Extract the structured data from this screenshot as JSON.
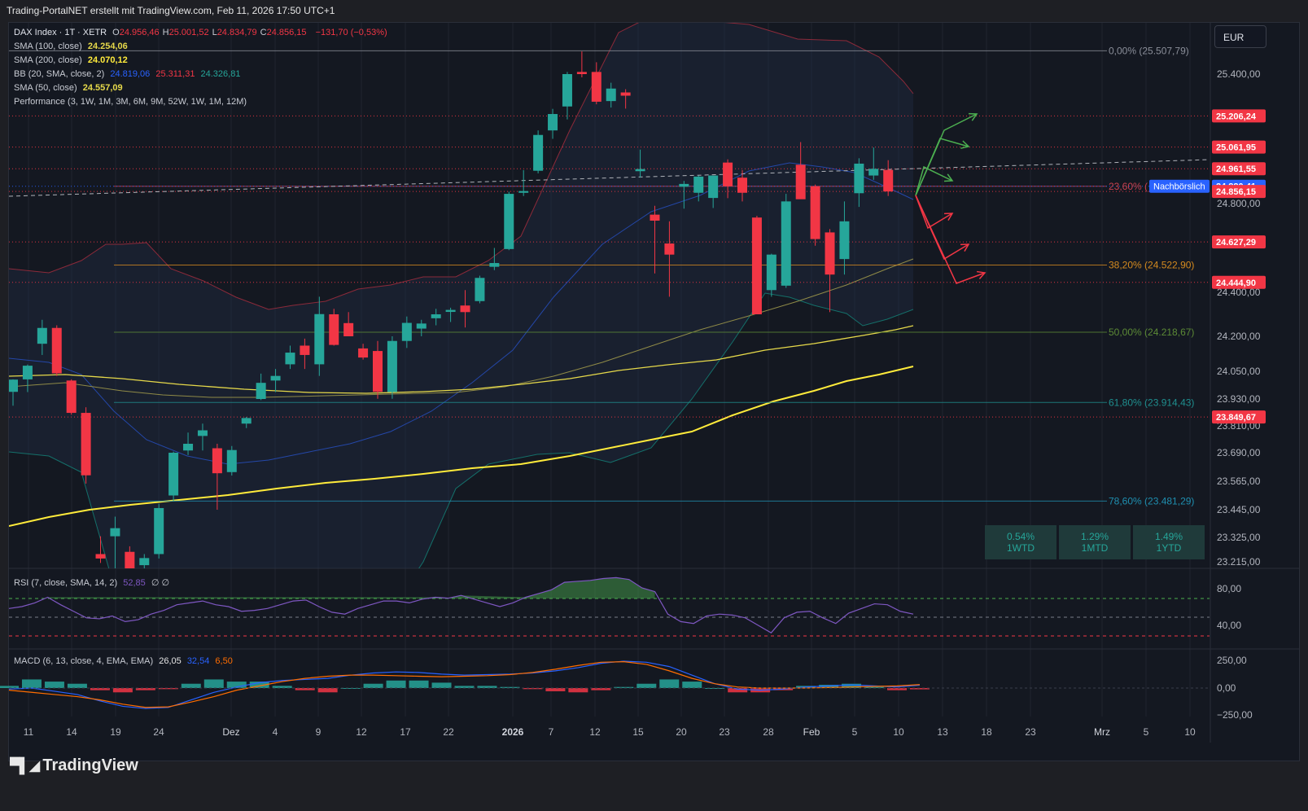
{
  "header": {
    "text": "Trading-PortalNET erstellt mit TradingView.com, Feb 11, 2026 17:50 UTC+1"
  },
  "currency": "EUR",
  "brand": "TradingView",
  "legend": {
    "symbol": "DAX Index · 1T · XETR",
    "ohlc": [
      {
        "k": "O",
        "v": "24.956,46"
      },
      {
        "k": "H",
        "v": "25.001,52"
      },
      {
        "k": "L",
        "v": "24.834,79"
      },
      {
        "k": "C",
        "v": "24.856,15"
      }
    ],
    "change": "−131,70 (−0,53%)",
    "sma100_label": "SMA (100, close)",
    "sma100_value": "24.254,06",
    "sma200_label": "SMA (200, close)",
    "sma200_value": "24.070,12",
    "bb_label": "BB (20, SMA, close, 2)",
    "bb_values": [
      "24.819,06",
      "25.311,31",
      "24.326,81"
    ],
    "sma50_label": "SMA (50, close)",
    "sma50_value": "24.557,09",
    "perf_label": "Performance (3, 1W, 1M, 3M, 6M, 9M, 52W, 1W, 1M, 12M)",
    "rsi_label": "RSI (7, close, SMA, 14, 2)",
    "rsi_value": "52,85",
    "rsi_extra": "∅ ∅",
    "macd_label": "MACD (6, 13, close, 4, EMA, EMA)",
    "macd_values": [
      "26,05",
      "32,54",
      "6,50"
    ]
  },
  "colors": {
    "up": "#26a69a",
    "down": "#f23645",
    "sma100": "#e6d94a",
    "sma200": "#ffeb3b",
    "sma50": "#8f8a47",
    "bb_mid": "#2962ff",
    "bb_up": "#b2344a",
    "bb_low": "#1a9a8a",
    "rsi": "#7e57c2",
    "macd": "#2962ff",
    "signal": "#ff6d00"
  },
  "performance": [
    {
      "value": "0.54%",
      "label": "1WTD"
    },
    {
      "value": "1.29%",
      "label": "1MTD"
    },
    {
      "value": "1.49%",
      "label": "1YTD"
    }
  ],
  "chart_data": {
    "type": "candlestick",
    "title": "DAX Index · 1T · XETR",
    "price_axis_ticks": [
      "25.400,00",
      "24.800,00",
      "24.400,00",
      "24.200,00",
      "24.050,00",
      "23.930,00",
      "23.810,00",
      "23.690,00",
      "23.565,00",
      "23.445,00",
      "23.325,00",
      "23.215,00"
    ],
    "x_axis_labels": [
      "11",
      "14",
      "19",
      "24",
      "Dez",
      "4",
      "9",
      "12",
      "17",
      "22",
      "2026",
      "7",
      "12",
      "15",
      "20",
      "23",
      "28",
      "Feb",
      "5",
      "10",
      "13",
      "18",
      "23",
      "Mrz",
      "5",
      "10"
    ],
    "candles": [
      [
        23961,
        24015,
        23900,
        24014
      ],
      [
        24015,
        24079,
        23960,
        24074
      ],
      [
        24168,
        24275,
        24120,
        24238
      ],
      [
        24238,
        24250,
        24030,
        24041
      ],
      [
        24010,
        24015,
        23860,
        23868
      ],
      [
        23868,
        23893,
        23555,
        23591
      ],
      [
        23250,
        23330,
        23210,
        23230
      ],
      [
        23330,
        23415,
        23150,
        23365
      ],
      [
        23260,
        23285,
        23180,
        23185
      ],
      [
        23200,
        23250,
        23120,
        23232
      ],
      [
        23250,
        23470,
        23230,
        23452
      ],
      [
        23505,
        23695,
        23480,
        23690
      ],
      [
        23700,
        23780,
        23680,
        23730
      ],
      [
        23765,
        23820,
        23700,
        23790
      ],
      [
        23710,
        23730,
        23445,
        23600
      ],
      [
        23605,
        23720,
        23590,
        23702
      ],
      [
        23820,
        23850,
        23800,
        23845
      ],
      [
        23930,
        24040,
        23925,
        24000
      ],
      [
        24010,
        24060,
        23960,
        24030
      ],
      [
        24080,
        24160,
        24060,
        24130
      ],
      [
        24160,
        24190,
        24060,
        24120
      ],
      [
        24080,
        24380,
        24030,
        24301
      ],
      [
        24300,
        24325,
        24160,
        24163
      ],
      [
        24260,
        24310,
        24200,
        24200
      ],
      [
        24148,
        24168,
        24100,
        24109
      ],
      [
        24137,
        24180,
        23931,
        23961
      ],
      [
        23960,
        24200,
        23931,
        24180
      ],
      [
        24180,
        24290,
        24150,
        24261
      ],
      [
        24235,
        24275,
        24200,
        24258
      ],
      [
        24282,
        24325,
        24250,
        24300
      ],
      [
        24311,
        24330,
        24265,
        24320
      ],
      [
        24340,
        24410,
        24240,
        24310
      ],
      [
        24360,
        24475,
        24350,
        24465
      ],
      [
        24515,
        24600,
        24500,
        24532
      ],
      [
        24595,
        24855,
        24590,
        24845
      ],
      [
        24850,
        24955,
        24835,
        24858
      ],
      [
        24952,
        25139,
        24940,
        25118
      ],
      [
        25139,
        25239,
        25100,
        25215
      ],
      [
        25250,
        25410,
        25190,
        25400
      ],
      [
        25410,
        25505,
        25385,
        25400
      ],
      [
        25410,
        25455,
        25260,
        25272
      ],
      [
        25275,
        25360,
        25245,
        25333
      ],
      [
        25315,
        25330,
        25240,
        25300
      ],
      [
        24950,
        25050,
        24920,
        24960
      ],
      [
        24750,
        24790,
        24485,
        24723
      ],
      [
        24620,
        24720,
        24380,
        24570
      ],
      [
        24878,
        24905,
        24777,
        24891
      ],
      [
        24850,
        24930,
        24810,
        24925
      ],
      [
        24826,
        24930,
        24780,
        24930
      ],
      [
        24990,
        25005,
        24825,
        24880
      ],
      [
        24920,
        24955,
        24810,
        24850
      ],
      [
        24737,
        24745,
        24300,
        24300
      ],
      [
        24410,
        24574,
        24380,
        24570
      ],
      [
        24430,
        24845,
        24420,
        24810
      ],
      [
        24980,
        25085,
        24825,
        24820
      ],
      [
        24880,
        24888,
        24610,
        24640
      ],
      [
        24670,
        24685,
        24310,
        24480
      ],
      [
        24550,
        24810,
        24480,
        24720
      ],
      [
        24848,
        25010,
        24785,
        24985
      ],
      [
        24930,
        25060,
        24910,
        24961
      ],
      [
        24956,
        25001,
        24835,
        24856
      ]
    ],
    "levels": [
      {
        "price": 25206.24,
        "label": "25.206,24",
        "color": "#f23645"
      },
      {
        "price": 25061.95,
        "label": "25.061,95",
        "color": "#f23645"
      },
      {
        "price": 24961.55,
        "label": "24.961,55",
        "color": "#f23645"
      },
      {
        "price": 24880.41,
        "label": "24.880,41",
        "color": "#2962ff",
        "tag": "Nachbörslich"
      },
      {
        "price": 24856.15,
        "label": "24.856,15",
        "color": "#f23645"
      },
      {
        "price": 24627.29,
        "label": "24.627,29",
        "color": "#f23645"
      },
      {
        "price": 24444.9,
        "label": "24.444,90",
        "color": "#f23645"
      },
      {
        "price": 23849.67,
        "label": "23.849,67",
        "color": "#f23645"
      }
    ],
    "fib_levels": [
      {
        "price": 25507.79,
        "label": "0,00% (25.507,79)",
        "color": "#8a8e99"
      },
      {
        "price": 24880.0,
        "label": "23,60% (",
        "color": "#c9424f"
      },
      {
        "price": 24522.9,
        "label": "38,20% (24.522,90)",
        "color": "#d48a1f"
      },
      {
        "price": 24218.67,
        "label": "50,00% (24.218,67)",
        "color": "#5c8a36"
      },
      {
        "price": 23914.43,
        "label": "61,80% (23.914,43)",
        "color": "#1f8f8f"
      },
      {
        "price": 23481.29,
        "label": "78,60% (23.481,29)",
        "color": "#1f8fb0"
      }
    ],
    "rsi_axis": [
      "80,00",
      "40,00"
    ],
    "rsi": [
      58,
      60,
      64,
      70,
      62,
      55,
      48,
      47,
      50,
      44,
      46,
      52,
      56,
      62,
      64,
      66,
      62,
      60,
      55,
      56,
      58,
      62,
      66,
      67,
      60,
      54,
      52,
      58,
      62,
      66,
      66,
      64,
      68,
      70,
      69,
      72,
      68,
      64,
      60,
      64,
      70,
      74,
      78,
      86,
      87,
      88,
      90,
      91,
      89,
      80,
      76,
      52,
      44,
      42,
      50,
      52,
      51,
      48,
      40,
      32,
      48,
      54,
      55,
      48,
      42,
      53,
      58,
      63,
      62,
      55,
      52
    ],
    "macd_axis": [
      "250,00",
      "0,00",
      "−250,00"
    ],
    "macd": [
      -10,
      0,
      -30,
      -60,
      -120,
      -170,
      -190,
      -180,
      -110,
      -40,
      10,
      50,
      70,
      80,
      90,
      120,
      140,
      150,
      145,
      130,
      120,
      125,
      130,
      140,
      160,
      190,
      230,
      250,
      240,
      200,
      120,
      40,
      -10,
      -20,
      -10,
      10,
      20,
      30,
      20,
      10,
      26
    ],
    "signal": [
      -20,
      -40,
      -60,
      -80,
      -110,
      -150,
      -180,
      -175,
      -130,
      -80,
      -20,
      20,
      60,
      90,
      110,
      120,
      120,
      115,
      110,
      105,
      110,
      115,
      125,
      145,
      175,
      210,
      240,
      245,
      220,
      160,
      90,
      40,
      10,
      0,
      0,
      0,
      5,
      10,
      15,
      20,
      32
    ]
  }
}
